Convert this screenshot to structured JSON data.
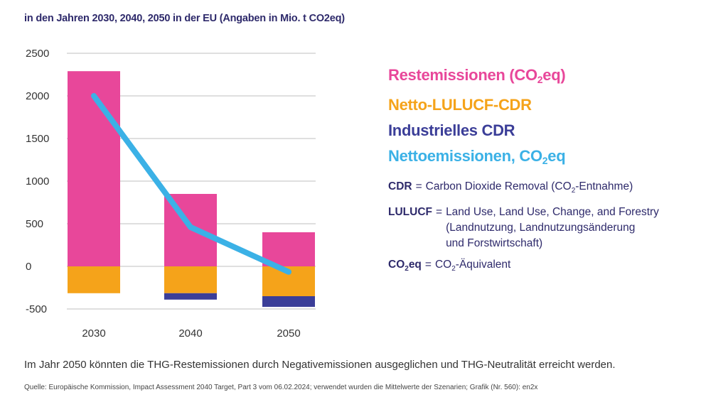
{
  "subtitle": "in den Jahren 2030, 2040, 2050 in der EU (Angaben in Mio. t CO2eq)",
  "colors": {
    "rest": "#e8479a",
    "lulucf": "#f5a31a",
    "industrial": "#3b3e98",
    "net": "#3bb1e6",
    "navy": "#2e2a6b"
  },
  "chart_data": {
    "type": "bar",
    "title": "in den Jahren 2030, 2040, 2050 in der EU (Angaben in Mio. t CO2eq)",
    "xlabel": "",
    "ylabel": "",
    "categories": [
      "2030",
      "2040",
      "2050"
    ],
    "ylim": [
      -500,
      2500
    ],
    "yticks": [
      2500,
      2000,
      1500,
      1000,
      500,
      0,
      -500
    ],
    "ytick_labels": [
      "2500",
      "2000",
      "1500",
      "1000",
      "500",
      "0",
      "-500"
    ],
    "grid": true,
    "stacked": true,
    "series": [
      {
        "name": "Restemissionen (CO2eq)",
        "kind": "bar",
        "color": "#e8479a",
        "values": [
          2290,
          850,
          400
        ]
      },
      {
        "name": "Netto-LULUCF-CDR",
        "kind": "bar",
        "color": "#f5a31a",
        "values": [
          -315,
          -315,
          -350
        ]
      },
      {
        "name": "Industrielles CDR",
        "kind": "bar",
        "color": "#3b3e98",
        "values": [
          0,
          -75,
          -125
        ]
      },
      {
        "name": "Nettoemissionen, CO2eq",
        "kind": "line",
        "color": "#3bb1e6",
        "values": [
          2000,
          460,
          -65
        ]
      }
    ]
  },
  "legend": {
    "rest": {
      "pre": "Restemissionen (CO",
      "sub": "2",
      "post": "eq)"
    },
    "lulucf": {
      "text": "Netto-LULUCF-CDR"
    },
    "industrial": {
      "text": "Industrielles CDR"
    },
    "net": {
      "pre": "Nettoemissionen, CO",
      "sub": "2",
      "post": "eq"
    }
  },
  "notes": {
    "cdr": {
      "term": "CDR",
      "eq": "=",
      "def_pre": "Carbon Dioxide Removal (CO",
      "def_sub": "2",
      "def_post": "-Entnahme)"
    },
    "lulucf": {
      "term": "LULUCF",
      "eq": "=",
      "def": "Land Use, Land Use, Change, and Forestry\n(Landnutzung, Landnutzungsänderung\nund Forstwirtschaft)"
    },
    "co2eq": {
      "term_pre": "CO",
      "term_sub": "2",
      "term_post": "eq",
      "eq": "=",
      "def_pre": "CO",
      "def_sub": "2",
      "def_post": "-Äquivalent"
    }
  },
  "summary": "Im Jahr 2050 könnten die THG-Restemissionen durch Negativemissionen ausgeglichen und THG-Neutralität erreicht werden.",
  "source": "Quelle: Europäische Kommission, Impact Assessment 2040 Target, Part 3 vom 06.02.2024; verwendet wurden die Mittelwerte der Szenarien; Grafik (Nr. 560): en2x"
}
